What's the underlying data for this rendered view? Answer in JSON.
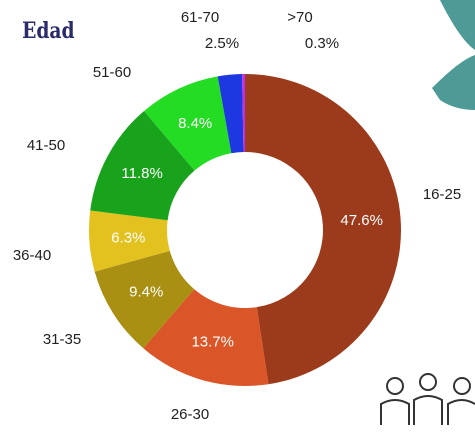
{
  "chart_data": {
    "type": "donut",
    "title": "Edad",
    "categories": [
      "16-25",
      "26-30",
      "31-35",
      "36-40",
      "41-50",
      "51-60",
      "61-70",
      ">70"
    ],
    "values": [
      47.6,
      13.7,
      9.4,
      6.3,
      11.8,
      8.4,
      2.5,
      0.3
    ],
    "value_labels": [
      "47.6%",
      "13.7%",
      "9.4%",
      "6.3%",
      "11.8%",
      "8.4%",
      "2.5%",
      "0.3%"
    ],
    "colors": [
      "#9b3b1b",
      "#da5528",
      "#a98f12",
      "#e3c11f",
      "#19a31c",
      "#24dc24",
      "#1d38e0",
      "#c22fe0"
    ]
  }
}
